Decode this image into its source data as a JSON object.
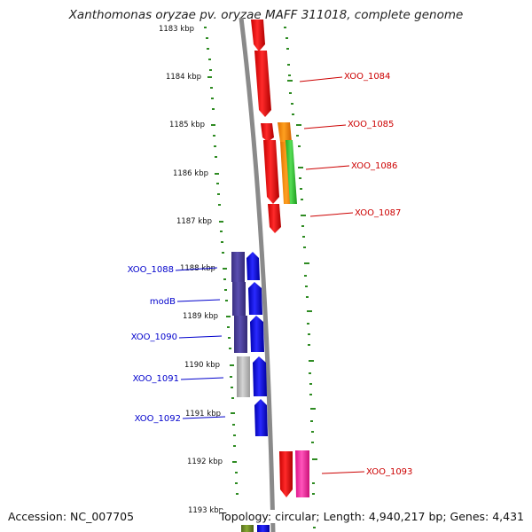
{
  "title": "Xanthomonas oryzae pv. oryzae MAFF 311018, complete genome",
  "footer": {
    "accession": "Accession: NC_007705",
    "summary": "Topology: circular; Length: 4,940,217 bp; Genes: 4,431"
  },
  "ruler": [
    "1183 kbp",
    "1184 kbp",
    "1185 kbp",
    "1186 kbp",
    "1187 kbp",
    "1188 kbp",
    "1189 kbp",
    "1190 kbp",
    "1191 kbp",
    "1192 kbp",
    "1193 kbp"
  ],
  "genes_forward": [
    {
      "id": "XOO_1084",
      "color": "#ff0000"
    },
    {
      "id": "XOO_1085",
      "color": "#ff0000"
    },
    {
      "id": "XOO_1086",
      "color": "#ff0000"
    },
    {
      "id": "XOO_1087",
      "color": "#ff0000"
    },
    {
      "id": "XOO_1093",
      "color": "#ff0000"
    }
  ],
  "genes_reverse": [
    {
      "id": "XOO_1088",
      "color": "#0000ee"
    },
    {
      "id": "modB",
      "color": "#0000ee"
    },
    {
      "id": "XOO_1090",
      "color": "#0000ee"
    },
    {
      "id": "XOO_1091",
      "color": "#0000ee"
    },
    {
      "id": "XOO_1092",
      "color": "#0000ee"
    }
  ],
  "colors": {
    "forward_strand": "#ff0000",
    "reverse_strand": "#0000ee",
    "forward_label": "#cc0000",
    "reverse_label": "#0000cc",
    "backbone": "#888888",
    "tick_dots": "#2e8b22",
    "feature_purple": "#4b3f99",
    "feature_gray": "#b8b8b8",
    "feature_orange": "#ff8c00",
    "feature_green": "#33cc33",
    "feature_pink": "#ff2299",
    "feature_olive": "#6b8e23"
  }
}
